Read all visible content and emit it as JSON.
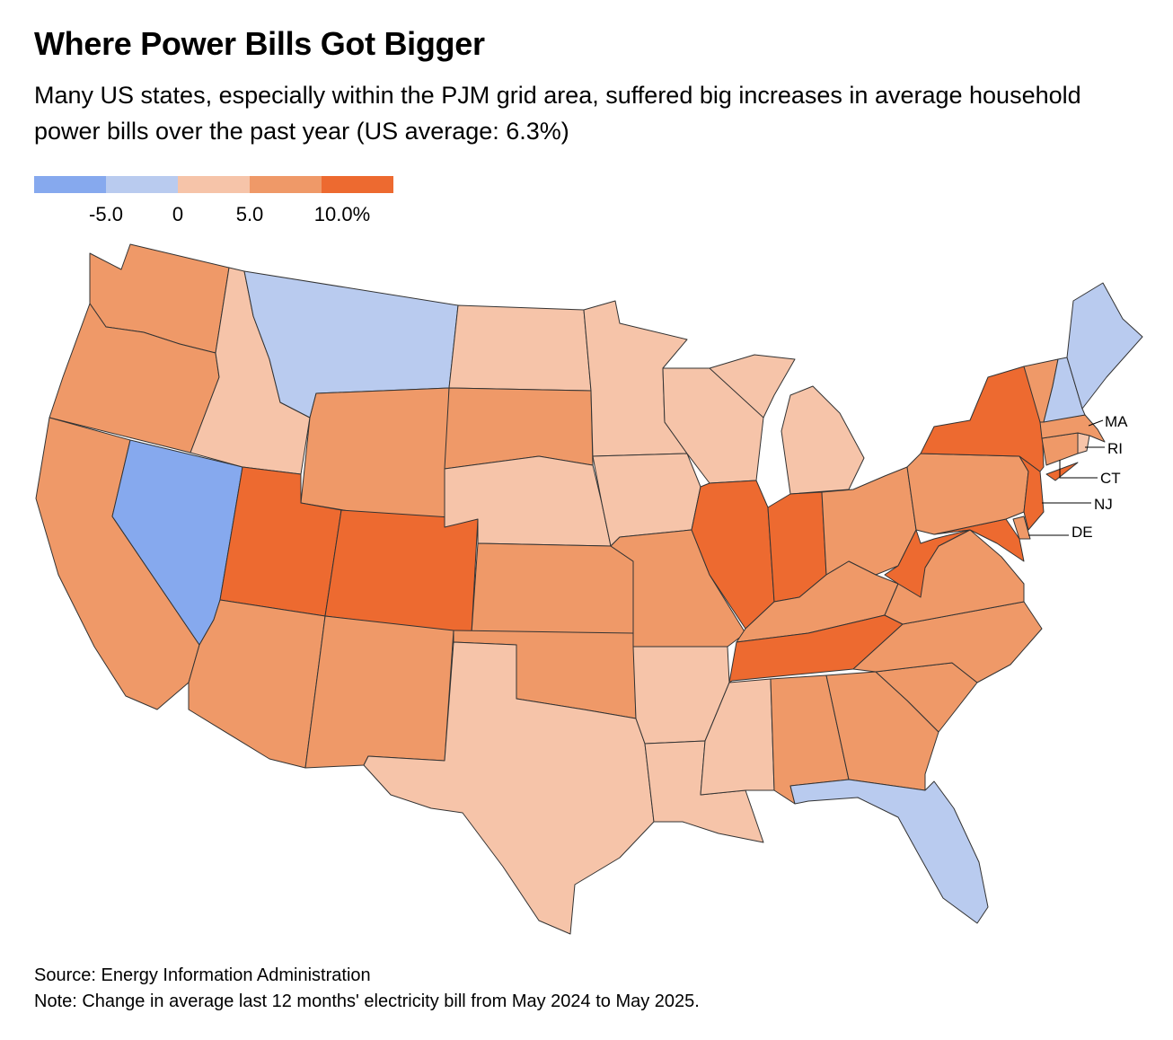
{
  "header": {
    "title": "Where Power Bills Got Bigger",
    "subtitle": "Many US states, especially within the PJM grid area, suffered big increases in average household power bills over the past year (US average: 6.3%)"
  },
  "legend": {
    "colors": [
      "#86a9ee",
      "#b9cbef",
      "#f6c4a9",
      "#ef9968",
      "#ed6a30"
    ],
    "ticks": [
      "-5.0",
      "0",
      "5.0",
      "10.0%"
    ]
  },
  "map": {
    "category_colors": {
      "below_-5": "#86a9ee",
      "-5_to_0": "#b9cbef",
      "0_to_5": "#f6c4a9",
      "5_to_10": "#ef9968",
      "above_10": "#ed6a30"
    },
    "callout_labels": [
      "MA",
      "RI",
      "CT",
      "NJ",
      "DE"
    ],
    "states": {
      "WA": "5_to_10",
      "OR": "5_to_10",
      "CA": "5_to_10",
      "NV": "below_-5",
      "ID": "0_to_5",
      "MT": "-5_to_0",
      "WY": "5_to_10",
      "UT": "above_10",
      "AZ": "5_to_10",
      "CO": "above_10",
      "NM": "5_to_10",
      "ND": "0_to_5",
      "SD": "5_to_10",
      "NE": "0_to_5",
      "KS": "5_to_10",
      "OK": "5_to_10",
      "TX": "0_to_5",
      "MN": "0_to_5",
      "IA": "0_to_5",
      "MO": "5_to_10",
      "AR": "0_to_5",
      "LA": "0_to_5",
      "WI": "0_to_5",
      "IL": "above_10",
      "MI": "0_to_5",
      "IN": "above_10",
      "OH": "5_to_10",
      "KY": "5_to_10",
      "TN": "above_10",
      "MS": "0_to_5",
      "AL": "5_to_10",
      "GA": "5_to_10",
      "FL": "-5_to_0",
      "SC": "5_to_10",
      "NC": "5_to_10",
      "VA": "5_to_10",
      "WV": "above_10",
      "MD": "above_10",
      "DE": "5_to_10",
      "NJ": "above_10",
      "PA": "5_to_10",
      "NY": "above_10",
      "CT": "5_to_10",
      "RI": "0_to_5",
      "MA": "5_to_10",
      "VT": "5_to_10",
      "NH": "-5_to_0",
      "ME": "-5_to_0"
    }
  },
  "footer": {
    "source": "Source: Energy Information Administration",
    "note": "Note: Change in average last 12 months' electricity bill from May 2024 to May 2025."
  }
}
